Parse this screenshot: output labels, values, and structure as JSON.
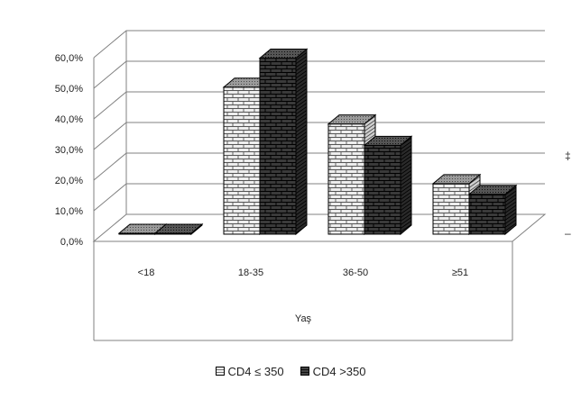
{
  "chart_data": {
    "type": "bar",
    "title": "",
    "xlabel": "Yaş",
    "ylabel": "",
    "ylim": [
      0,
      60
    ],
    "y_ticks": [
      "0,0%",
      "10,0%",
      "20,0%",
      "30,0%",
      "40,0%",
      "50,0%",
      "60,0%"
    ],
    "categories": [
      "<18",
      "18-35",
      "36-50",
      "≥51"
    ],
    "series": [
      {
        "name": "CD4 ≤ 350",
        "values": [
          0.3,
          48.0,
          36.0,
          16.5
        ]
      },
      {
        "name": "CD4 >350",
        "values": [
          0.3,
          57.5,
          29.0,
          13.0
        ]
      }
    ],
    "grid": true,
    "legend": "bottom"
  },
  "colors": {
    "series_light_face": "#ededed",
    "series_light_top": "#8c8c8c",
    "series_dark_face": "#3a3a3a",
    "series_dark_top": "#555555",
    "brick_line": "#000000",
    "grid": "#808080"
  },
  "side_glyphs": [
    "‡",
    "–"
  ]
}
